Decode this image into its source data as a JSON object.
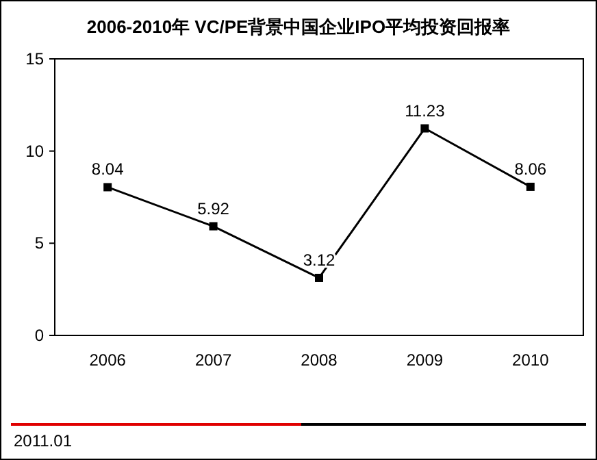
{
  "chart_data": {
    "type": "line",
    "title": "2006-2010年  VC/PE背景中国企业IPO平均投资回报率",
    "categories": [
      "2006",
      "2007",
      "2008",
      "2009",
      "2010"
    ],
    "series": [
      {
        "color": "#000000",
        "values": [
          8.04,
          5.92,
          3.12,
          11.23,
          8.06
        ]
      }
    ],
    "ylim": [
      0,
      15
    ],
    "yticks": [
      0,
      5,
      10,
      15
    ],
    "marker": "square",
    "line_style": "solid",
    "data_labels": true,
    "grid": false,
    "annotations": [
      "2011.01"
    ]
  }
}
